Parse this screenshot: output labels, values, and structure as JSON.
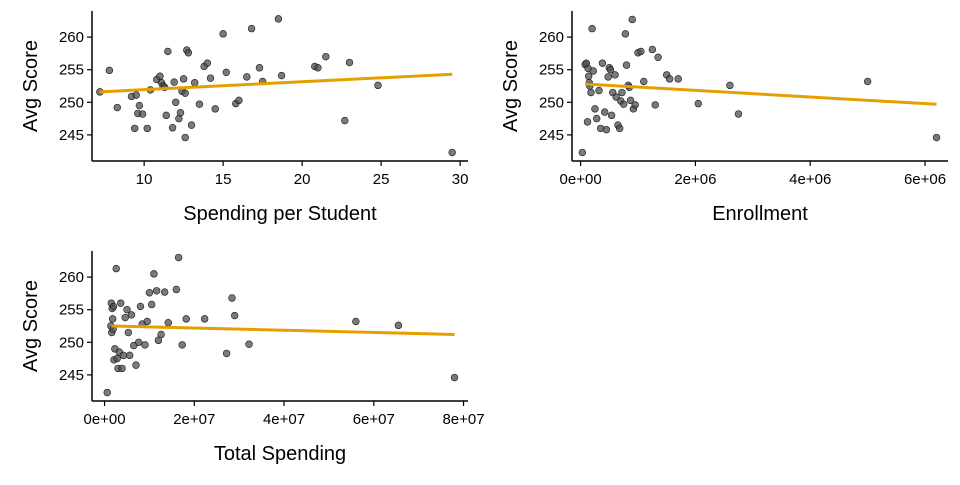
{
  "colors": {
    "point": "#4d4d4d",
    "fit_line": "#E69F00"
  },
  "chart_data": [
    {
      "type": "scatter",
      "xlabel": "Spending per Student",
      "ylabel": "Avg Score",
      "xlim": [
        6.7,
        30.5
      ],
      "ylim": [
        241,
        264
      ],
      "xticks": [
        10,
        15,
        20,
        25,
        30
      ],
      "xtick_labels": [
        "10",
        "15",
        "20",
        "25",
        "30"
      ],
      "yticks": [
        245,
        250,
        255,
        260
      ],
      "ytick_labels": [
        "245",
        "250",
        "255",
        "260"
      ],
      "fit": {
        "type": "linear",
        "x": [
          7.2,
          29.5
        ],
        "y": [
          251.6,
          254.3
        ]
      },
      "points": {
        "x": [
          7.2,
          7.8,
          8.3,
          9.2,
          9.4,
          9.5,
          9.6,
          9.7,
          9.9,
          10.2,
          10.4,
          10.8,
          11.0,
          11.1,
          11.2,
          11.3,
          11.4,
          11.5,
          11.8,
          11.9,
          12.0,
          12.2,
          12.3,
          12.4,
          12.5,
          12.6,
          12.6,
          12.7,
          12.8,
          13.0,
          13.2,
          13.5,
          13.8,
          14.0,
          14.2,
          14.5,
          15.0,
          15.2,
          15.8,
          16.0,
          16.5,
          16.8,
          17.3,
          17.5,
          18.5,
          18.7,
          20.8,
          21.0,
          21.5,
          22.7,
          23.0,
          24.8,
          29.5
        ],
        "y": [
          251.6,
          254.9,
          249.2,
          250.9,
          246.0,
          251.1,
          248.3,
          249.5,
          248.2,
          246.0,
          251.9,
          253.5,
          254.0,
          253.0,
          252.5,
          252.3,
          248.0,
          257.8,
          246.1,
          253.1,
          250.0,
          247.5,
          248.4,
          251.7,
          253.6,
          251.4,
          244.6,
          258.0,
          257.6,
          246.5,
          253.0,
          249.7,
          255.5,
          256.0,
          253.7,
          249.0,
          260.5,
          254.6,
          249.8,
          250.3,
          253.9,
          261.3,
          255.3,
          253.2,
          262.8,
          254.1,
          255.5,
          255.3,
          257.0,
          247.2,
          256.1,
          252.6,
          242.3
        ]
      }
    },
    {
      "type": "scatter",
      "xlabel": "Enrollment",
      "ylabel": "Avg Score",
      "xlim": [
        -150000,
        6400000
      ],
      "ylim": [
        241,
        264
      ],
      "xticks": [
        0,
        2000000,
        4000000,
        6000000
      ],
      "xtick_labels": [
        "0e+00",
        "2e+06",
        "4e+06",
        "6e+06"
      ],
      "yticks": [
        245,
        250,
        255,
        260
      ],
      "ytick_labels": [
        "245",
        "250",
        "255",
        "260"
      ],
      "fit": {
        "type": "linear",
        "x": [
          80000,
          6200000
        ],
        "y": [
          252.8,
          249.7
        ]
      },
      "points": {
        "x": [
          30000,
          80000,
          100000,
          120000,
          130000,
          140000,
          150000,
          160000,
          180000,
          200000,
          220000,
          250000,
          280000,
          320000,
          350000,
          380000,
          420000,
          450000,
          480000,
          500000,
          520000,
          540000,
          560000,
          600000,
          620000,
          650000,
          680000,
          700000,
          720000,
          750000,
          780000,
          800000,
          830000,
          850000,
          870000,
          900000,
          920000,
          950000,
          1000000,
          1050000,
          1100000,
          1250000,
          1300000,
          1350000,
          1500000,
          1550000,
          1700000,
          2050000,
          2600000,
          2750000,
          5000000,
          6200000
        ],
        "y": [
          242.3,
          255.8,
          256.0,
          247.0,
          255.2,
          254.0,
          253.0,
          252.5,
          251.5,
          261.3,
          254.8,
          249.0,
          247.5,
          251.8,
          246.0,
          256.0,
          248.5,
          245.8,
          253.9,
          255.3,
          255.0,
          248.0,
          251.5,
          254.2,
          250.8,
          246.5,
          246.0,
          250.2,
          251.5,
          249.7,
          260.5,
          255.7,
          252.6,
          252.3,
          250.3,
          262.7,
          249.0,
          249.6,
          257.6,
          257.8,
          253.2,
          258.1,
          249.6,
          256.9,
          254.2,
          253.6,
          253.6,
          249.8,
          252.6,
          248.2,
          253.2,
          244.6
        ]
      }
    },
    {
      "type": "scatter",
      "xlabel": "Total Spending",
      "ylabel": "Avg Score",
      "xlim": [
        -2800000,
        81000000
      ],
      "ylim": [
        241,
        264
      ],
      "xticks": [
        0,
        20000000,
        40000000,
        60000000,
        80000000
      ],
      "xtick_labels": [
        "0e+00",
        "2e+07",
        "4e+07",
        "6e+07",
        "8e+07"
      ],
      "yticks": [
        245,
        250,
        255,
        260
      ],
      "ytick_labels": [
        "245",
        "250",
        "255",
        "260"
      ],
      "fit": {
        "type": "linear",
        "x": [
          1500000,
          78000000
        ],
        "y": [
          252.5,
          251.2
        ]
      },
      "points": {
        "x": [
          600000,
          1400000,
          1500000,
          1600000,
          1700000,
          1800000,
          1900000,
          2000000,
          2100000,
          2300000,
          2600000,
          2800000,
          3000000,
          3300000,
          3600000,
          3900000,
          4200000,
          4600000,
          5000000,
          5300000,
          5600000,
          6000000,
          6500000,
          7000000,
          7600000,
          8000000,
          8400000,
          9000000,
          9500000,
          10000000,
          10500000,
          11000000,
          11600000,
          12000000,
          12600000,
          13400000,
          14200000,
          16000000,
          16500000,
          17300000,
          18200000,
          22300000,
          27200000,
          28400000,
          29000000,
          32200000,
          56000000,
          65500000,
          78000000
        ],
        "y": [
          242.3,
          252.5,
          256.0,
          251.5,
          255.2,
          253.6,
          252.0,
          255.5,
          247.3,
          249.0,
          261.3,
          247.5,
          246.0,
          248.5,
          256.0,
          246.0,
          248.0,
          253.8,
          255.0,
          251.5,
          248.0,
          254.2,
          249.5,
          246.5,
          250.0,
          255.5,
          252.8,
          249.6,
          253.2,
          257.6,
          255.8,
          260.5,
          257.9,
          250.3,
          251.2,
          257.7,
          253.0,
          258.1,
          263.0,
          249.6,
          253.6,
          253.6,
          248.3,
          256.8,
          254.1,
          249.7,
          253.2,
          252.6,
          244.6
        ]
      }
    }
  ]
}
